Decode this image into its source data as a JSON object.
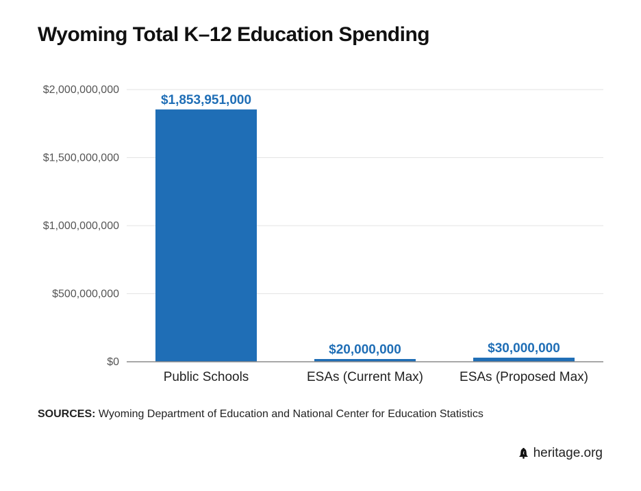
{
  "title": "Wyoming Total K–12 Education Spending",
  "colors": {
    "bar": "#1f6eb6",
    "label": "#1f6eb6",
    "grid": "#e3e3e3",
    "axis": "#8a8a8a"
  },
  "chart_data": {
    "type": "bar",
    "title": "Wyoming Total K–12 Education Spending",
    "categories": [
      "Public Schools",
      "ESAs (Current Max)",
      "ESAs (Proposed Max)"
    ],
    "values": [
      1853951000,
      20000000,
      30000000
    ],
    "data_labels": [
      "$1,853,951,000",
      "$20,000,000",
      "$30,000,000"
    ],
    "ylim": [
      0,
      2000000000
    ],
    "yticks": [
      0,
      500000000,
      1000000000,
      1500000000,
      2000000000
    ],
    "ytick_labels": [
      "$0",
      "$500,000,000",
      "$1,000,000,000",
      "$1,500,000,000",
      "$2,000,000,000"
    ],
    "xlabel": "",
    "ylabel": "",
    "grid": true,
    "legend": "none"
  },
  "sources": {
    "label": "SOURCES:",
    "text": "Wyoming Department of Education and National Center for Education Statistics"
  },
  "brand": {
    "text": "heritage.org",
    "icon": "liberty-bell-icon"
  }
}
